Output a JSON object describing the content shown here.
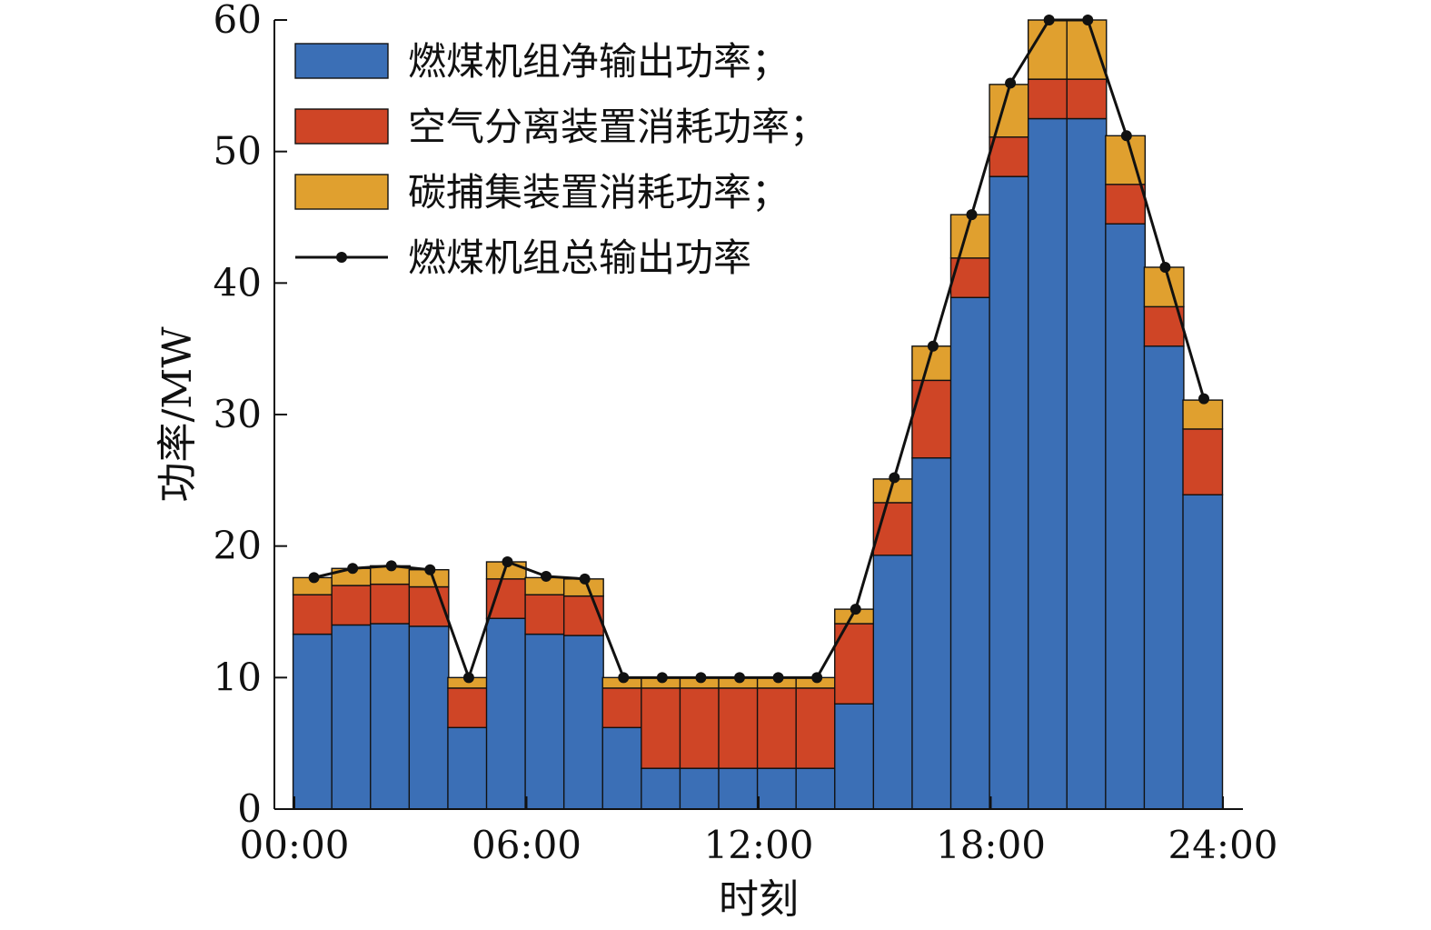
{
  "chart_data": {
    "type": "bar",
    "stacked": true,
    "xlabel": "时刻",
    "ylabel": "功率/MW",
    "ylim": [
      0,
      60
    ],
    "yticks": [
      0,
      10,
      20,
      30,
      40,
      50,
      60
    ],
    "xlim": [
      0,
      24
    ],
    "xticks": [
      "00:00",
      "06:00",
      "12:00",
      "18:00",
      "24:00"
    ],
    "hours": [
      1,
      2,
      3,
      4,
      5,
      6,
      7,
      8,
      9,
      10,
      11,
      12,
      13,
      14,
      15,
      16,
      17,
      18,
      19,
      20,
      21,
      22,
      23,
      24
    ],
    "series": [
      {
        "name": "燃煤机组净输出功率；",
        "color": "#3b6fb6",
        "values": [
          13.3,
          14.0,
          14.1,
          13.9,
          6.2,
          14.5,
          13.3,
          13.2,
          6.2,
          3.1,
          3.1,
          3.1,
          3.1,
          3.1,
          8.0,
          19.3,
          26.7,
          38.9,
          48.1,
          52.5,
          52.5,
          44.5,
          35.2,
          23.9
        ]
      },
      {
        "name": "空气分离装置消耗功率；",
        "color": "#cf4526",
        "values": [
          3.0,
          3.0,
          3.0,
          3.0,
          3.0,
          3.0,
          3.0,
          3.0,
          3.0,
          6.1,
          6.1,
          6.1,
          6.1,
          6.1,
          6.1,
          4.0,
          5.9,
          3.0,
          3.0,
          3.0,
          3.0,
          3.0,
          3.0,
          5.0
        ]
      },
      {
        "name": "碳捕集装置消耗功率；",
        "color": "#e0a02f",
        "values": [
          1.3,
          1.3,
          1.4,
          1.3,
          0.8,
          1.3,
          1.3,
          1.3,
          0.8,
          0.8,
          0.8,
          0.8,
          0.8,
          0.8,
          1.1,
          1.8,
          2.6,
          3.3,
          4.0,
          4.5,
          4.5,
          3.7,
          3.0,
          2.2
        ]
      }
    ],
    "line": {
      "name": "燃煤机组总输出功率",
      "color": "#111111",
      "values": [
        17.6,
        18.3,
        18.5,
        18.2,
        10.0,
        18.8,
        17.7,
        17.5,
        10.0,
        10.0,
        10.0,
        10.0,
        10.0,
        10.0,
        15.2,
        25.2,
        35.2,
        45.2,
        55.2,
        60.0,
        60.0,
        51.2,
        41.2,
        31.2
      ]
    },
    "legend": "top-left"
  }
}
